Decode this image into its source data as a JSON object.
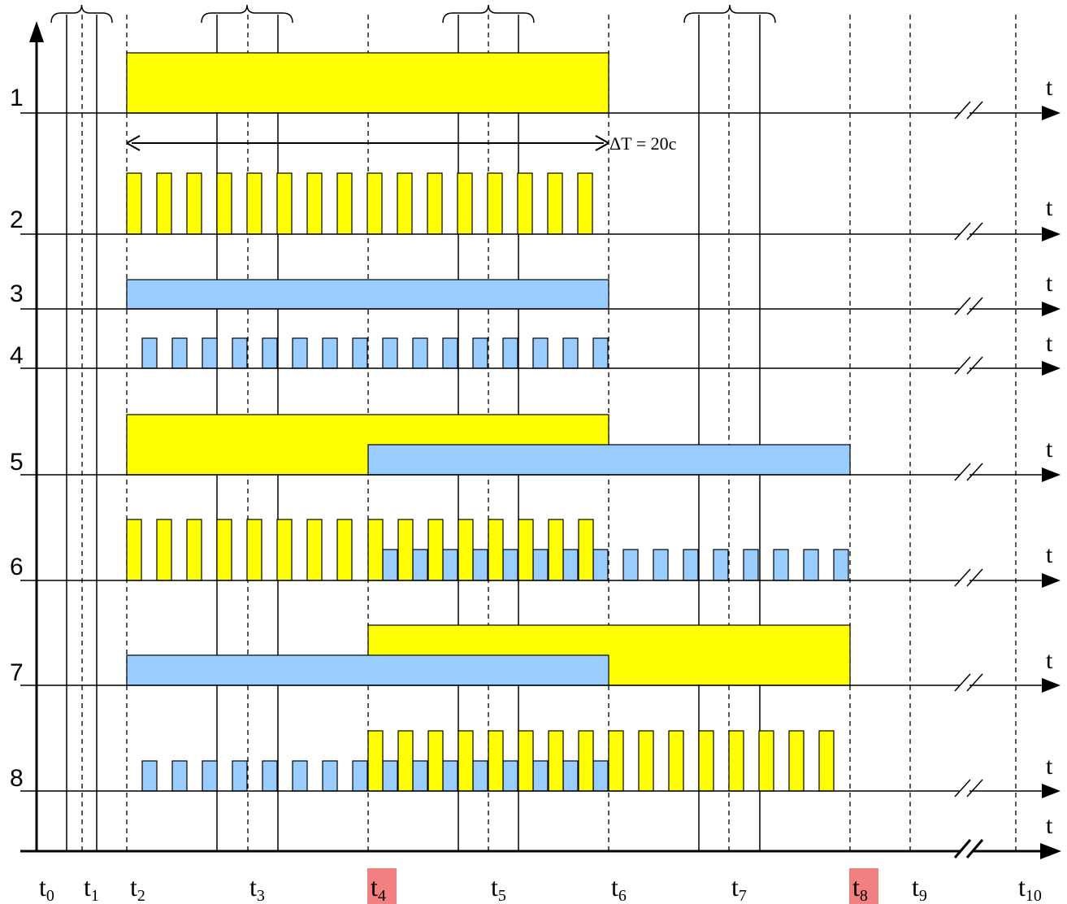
{
  "colors": {
    "yellow": "#FFFF00",
    "blue": "#99CCFF",
    "highlight": "#F28080",
    "line": "#000000"
  },
  "axis_letter": "t",
  "interval_label": "ΔT = 20c",
  "time_marks": [
    {
      "base": "t",
      "sub": "0",
      "highlight": false
    },
    {
      "base": "t",
      "sub": "1",
      "highlight": false
    },
    {
      "base": "t",
      "sub": "2",
      "highlight": false
    },
    {
      "base": "t",
      "sub": "3",
      "highlight": false
    },
    {
      "base": "t",
      "sub": "4",
      "highlight": true
    },
    {
      "base": "t",
      "sub": "5",
      "highlight": false
    },
    {
      "base": "t",
      "sub": "6",
      "highlight": false
    },
    {
      "base": "t",
      "sub": "7",
      "highlight": false
    },
    {
      "base": "t",
      "sub": "8",
      "highlight": true
    },
    {
      "base": "t",
      "sub": "9",
      "highlight": false
    },
    {
      "base": "t",
      "sub": "10",
      "highlight": false
    }
  ],
  "rows": [
    {
      "label": "1"
    },
    {
      "label": "2"
    },
    {
      "label": "3"
    },
    {
      "label": "4"
    },
    {
      "label": "5"
    },
    {
      "label": "6"
    },
    {
      "label": "7"
    },
    {
      "label": "8"
    }
  ]
}
